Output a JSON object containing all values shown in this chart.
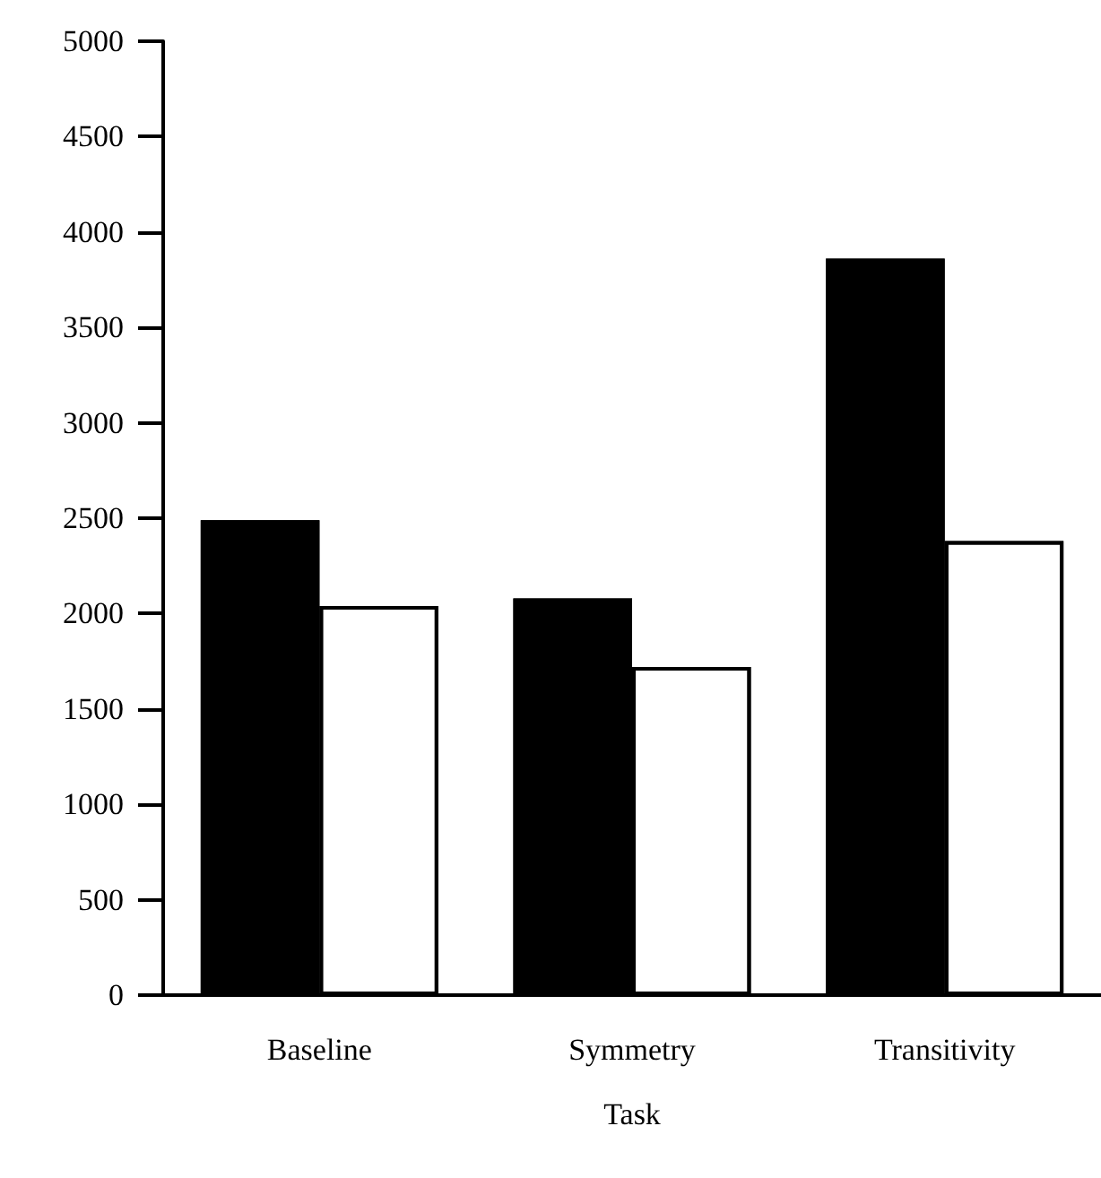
{
  "chart_data": {
    "type": "bar",
    "xlabel": "Task",
    "categories": [
      "Baseline",
      "Symmetry",
      "Transitivity"
    ],
    "series": [
      {
        "color": "#000000",
        "values": [
          2490,
          2080,
          3860
        ]
      },
      {
        "color": "#ffffff",
        "values": [
          2040,
          1720,
          2380
        ]
      }
    ],
    "ylim": [
      0,
      5000
    ],
    "yticks": [
      0,
      500,
      1000,
      1500,
      2000,
      2500,
      3000,
      3500,
      4000,
      4500,
      5000
    ],
    "grid": false
  }
}
